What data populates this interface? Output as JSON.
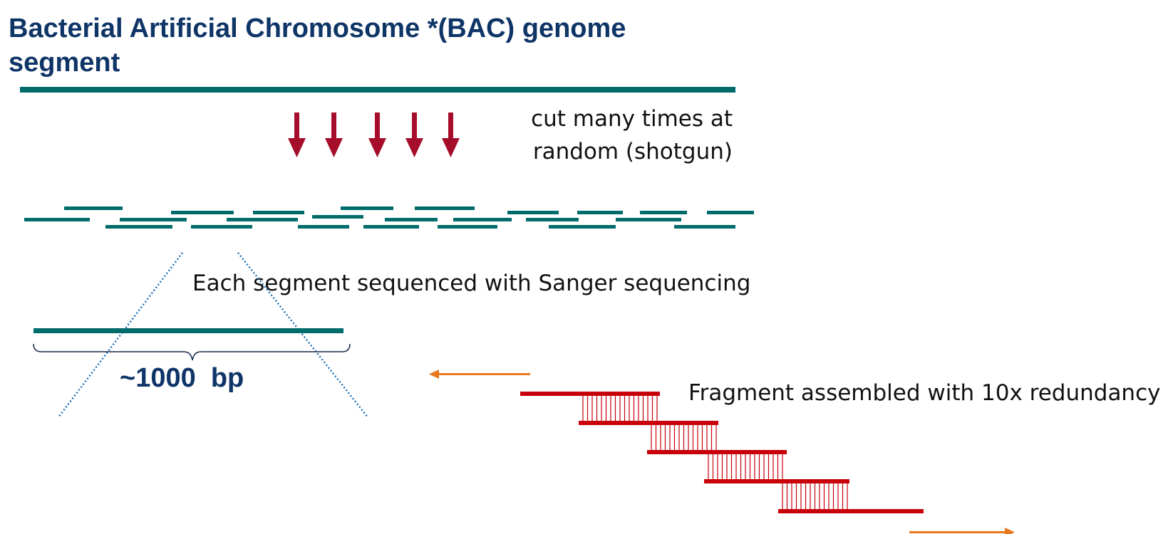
{
  "title": "Bacterial Artificial Chromosome *(BAC) genome segment",
  "labels": {
    "cut": "cut many times at random (shotgun)",
    "sequenced": "Each segment sequenced with Sanger sequencing",
    "segment_length": "~1000  bp",
    "assembled": "Fragment assembled with 10x redundancy"
  },
  "colors": {
    "title": "#0f3567",
    "dna": "#006b6b",
    "cut_arrow": "#a50d2a",
    "read": "#c8000a",
    "direction_arrow": "#e8781e",
    "dotted": "#1f6fb5",
    "text": "#111111"
  },
  "icons": {
    "cut": "down-arrow-icon",
    "direction": "right-arrow-icon"
  }
}
